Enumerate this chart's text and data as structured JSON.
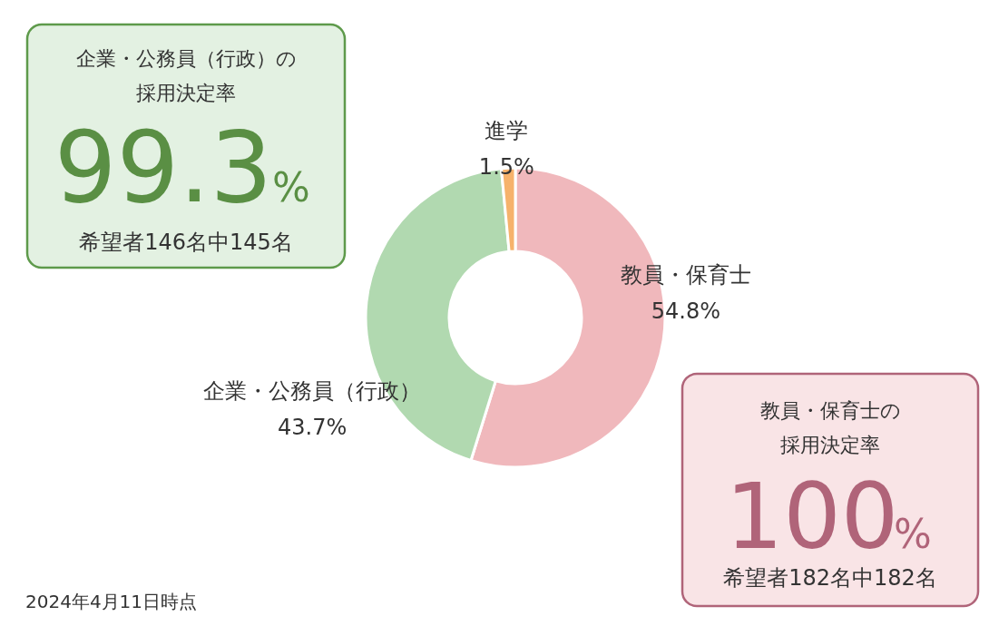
{
  "chart_data": {
    "type": "donut",
    "categories": [
      "教員・保育士",
      "企業・公務員（行政）",
      "進学"
    ],
    "values": [
      54.8,
      43.7,
      1.5
    ],
    "value_labels": [
      "54.8%",
      "43.7%",
      "1.5%"
    ],
    "colors": [
      "#f0b8bc",
      "#b1d9b0",
      "#f6b26b"
    ],
    "annotations": [
      "企業・公務員（行政）の",
      "採用決定率",
      "99.3",
      "%",
      "希望者146名中145名",
      "教員・保育士の",
      "採用決定率",
      "100",
      "%",
      "希望者182名中182名",
      "2024年4月11日時点"
    ]
  }
}
